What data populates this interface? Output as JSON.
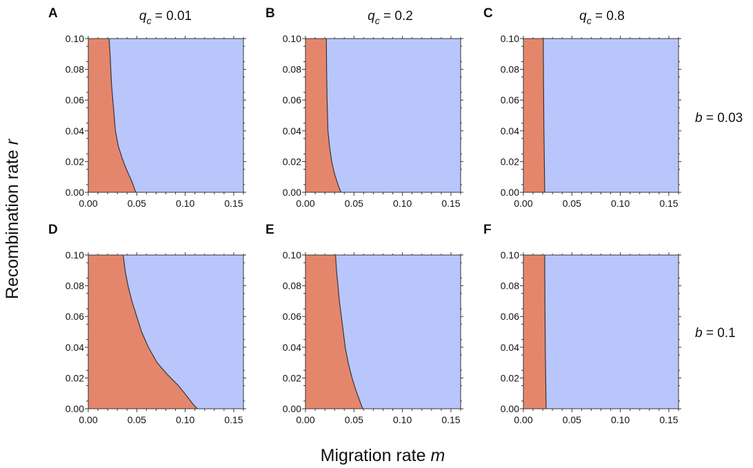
{
  "chart_data": {
    "type": "region",
    "layout": "2x3 grid of region plots",
    "xlabel_main": "Migration rate",
    "xlabel_var": "m",
    "ylabel_main": "Recombination rate",
    "ylabel_var": "r",
    "xlim": [
      0,
      0.16
    ],
    "ylim": [
      0,
      0.1
    ],
    "xticks": [
      0,
      0.05,
      0.1,
      0.15
    ],
    "xtick_labels": [
      "0.00",
      "0.05",
      "0.10",
      "0.15"
    ],
    "yticks": [
      0,
      0.02,
      0.04,
      0.06,
      0.08,
      0.1
    ],
    "ytick_labels": [
      "0.00",
      "0.02",
      "0.04",
      "0.06",
      "0.08",
      "0.10"
    ],
    "colors": {
      "left_region": "#E4866B",
      "right_region": "#B9C6FC",
      "boundary": "#2a2a2a",
      "frame": "#333333"
    },
    "columns": [
      {
        "var": "q",
        "sub": "c",
        "eq": " = 0.01"
      },
      {
        "var": "q",
        "sub": "c",
        "eq": " = 0.2"
      },
      {
        "var": "q",
        "sub": "c",
        "eq": " = 0.8"
      }
    ],
    "rows": [
      {
        "var": "b",
        "eq": " = 0.03"
      },
      {
        "var": "b",
        "eq": " = 0.1"
      }
    ],
    "panels": [
      {
        "letter": "A",
        "row": 0,
        "col": 0,
        "boundary": [
          [
            0.0215,
            0.1
          ],
          [
            0.0225,
            0.09
          ],
          [
            0.024,
            0.07
          ],
          [
            0.026,
            0.055
          ],
          [
            0.028,
            0.04
          ],
          [
            0.031,
            0.03
          ],
          [
            0.035,
            0.022
          ],
          [
            0.04,
            0.014
          ],
          [
            0.045,
            0.007
          ],
          [
            0.049,
            0.0
          ]
        ]
      },
      {
        "letter": "B",
        "row": 0,
        "col": 1,
        "boundary": [
          [
            0.0215,
            0.1
          ],
          [
            0.0218,
            0.08
          ],
          [
            0.0223,
            0.06
          ],
          [
            0.0232,
            0.04
          ],
          [
            0.0248,
            0.03
          ],
          [
            0.027,
            0.02
          ],
          [
            0.03,
            0.012
          ],
          [
            0.0335,
            0.005
          ],
          [
            0.0365,
            0.0
          ]
        ]
      },
      {
        "letter": "C",
        "row": 0,
        "col": 2,
        "boundary": [
          [
            0.0205,
            0.1
          ],
          [
            0.0208,
            0.07
          ],
          [
            0.0212,
            0.04
          ],
          [
            0.0216,
            0.02
          ],
          [
            0.022,
            0.0
          ]
        ]
      },
      {
        "letter": "D",
        "row": 1,
        "col": 0,
        "boundary": [
          [
            0.036,
            0.1
          ],
          [
            0.038,
            0.09
          ],
          [
            0.041,
            0.08
          ],
          [
            0.045,
            0.07
          ],
          [
            0.05,
            0.06
          ],
          [
            0.055,
            0.05
          ],
          [
            0.062,
            0.04
          ],
          [
            0.071,
            0.03
          ],
          [
            0.082,
            0.022
          ],
          [
            0.093,
            0.015
          ],
          [
            0.102,
            0.008
          ],
          [
            0.108,
            0.003
          ],
          [
            0.1125,
            0.0
          ]
        ]
      },
      {
        "letter": "E",
        "row": 1,
        "col": 1,
        "boundary": [
          [
            0.031,
            0.1
          ],
          [
            0.032,
            0.09
          ],
          [
            0.0335,
            0.08
          ],
          [
            0.035,
            0.07
          ],
          [
            0.037,
            0.06
          ],
          [
            0.039,
            0.05
          ],
          [
            0.041,
            0.04
          ],
          [
            0.044,
            0.03
          ],
          [
            0.048,
            0.02
          ],
          [
            0.052,
            0.012
          ],
          [
            0.056,
            0.005
          ],
          [
            0.059,
            0.0
          ]
        ]
      },
      {
        "letter": "F",
        "row": 1,
        "col": 2,
        "boundary": [
          [
            0.022,
            0.1
          ],
          [
            0.0222,
            0.07
          ],
          [
            0.0226,
            0.04
          ],
          [
            0.023,
            0.02
          ],
          [
            0.0235,
            0.0
          ]
        ]
      }
    ]
  }
}
